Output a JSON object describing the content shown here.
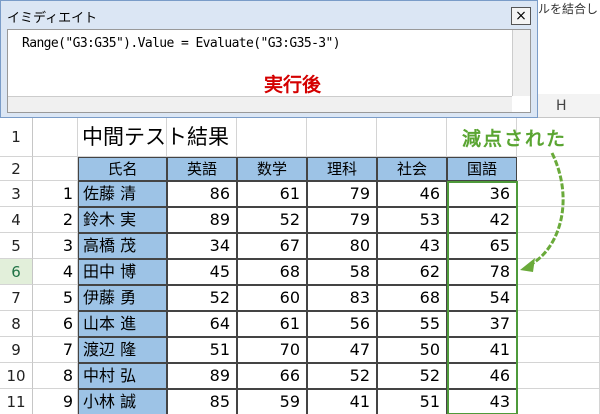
{
  "window": {
    "title": "イミディエイト",
    "close": "×",
    "command": "Range(\"G3:G35\").Value = Evaluate(\"G3:G35-3\")",
    "note": "実行後"
  },
  "ribbon_text": "ルを結合し",
  "column_letter": "H",
  "row_headers": [
    "1",
    "2",
    "3",
    "4",
    "5",
    "6",
    "7",
    "8",
    "9",
    "10",
    "11"
  ],
  "sheet": {
    "title": "中間テスト結果",
    "headers": [
      "氏名",
      "英語",
      "数学",
      "理科",
      "社会",
      "国語"
    ],
    "rows": [
      [
        1,
        "佐藤 清",
        86,
        61,
        79,
        46,
        36
      ],
      [
        2,
        "鈴木 実",
        89,
        52,
        79,
        53,
        42
      ],
      [
        3,
        "高橋 茂",
        34,
        67,
        80,
        43,
        65
      ],
      [
        4,
        "田中 博",
        45,
        68,
        58,
        62,
        78
      ],
      [
        5,
        "伊藤 勇",
        52,
        60,
        83,
        68,
        54
      ],
      [
        6,
        "山本 進",
        64,
        61,
        56,
        55,
        37
      ],
      [
        7,
        "渡辺 隆",
        51,
        70,
        47,
        50,
        41
      ],
      [
        8,
        "中村 弘",
        89,
        66,
        52,
        52,
        46
      ],
      [
        9,
        "小林 誠",
        85,
        59,
        41,
        51,
        43
      ]
    ]
  },
  "callout": "減点された"
}
